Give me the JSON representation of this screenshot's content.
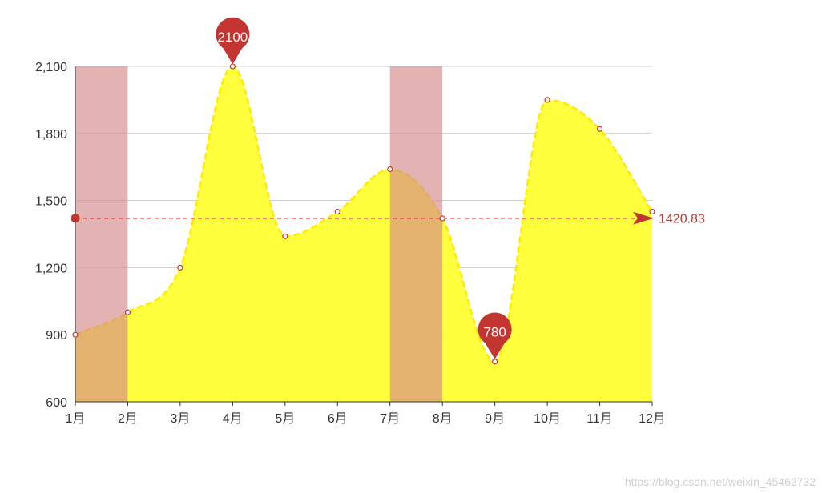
{
  "chart_data": {
    "type": "area",
    "categories": [
      "1月",
      "2月",
      "3月",
      "4月",
      "5月",
      "6月",
      "7月",
      "8月",
      "9月",
      "10月",
      "11月",
      "12月"
    ],
    "values": [
      900,
      1000,
      1200,
      2100,
      1340,
      1450,
      1640,
      1420,
      780,
      1950,
      1820,
      1450
    ],
    "ylim": [
      600,
      2100
    ],
    "yticks": [
      600,
      900,
      1200,
      1500,
      1800,
      2100
    ],
    "ytick_labels": [
      "600",
      "900",
      "1,200",
      "1,500",
      "1,800",
      "2,100"
    ],
    "grid": true,
    "smooth": true,
    "mark_points": [
      {
        "category": "4月",
        "value": 2100,
        "label": "2100",
        "kind": "max"
      },
      {
        "category": "9月",
        "value": 780,
        "label": "780",
        "kind": "min"
      }
    ],
    "mark_line": {
      "value": 1420.83,
      "label": "1420.83",
      "kind": "average"
    },
    "mark_areas": [
      {
        "from": "1月",
        "to": "2月"
      },
      {
        "from": "7月",
        "to": "8月"
      }
    ],
    "colors": {
      "area_fill": "#ffff33",
      "area_line": "#ffea00",
      "point_stroke": "#c23531",
      "mark_red": "#c23531",
      "band_fill": "#d48a8b",
      "axis": "#333333",
      "grid": "#cccccc"
    }
  },
  "watermark": "https://blog.csdn.net/weixin_45462732"
}
